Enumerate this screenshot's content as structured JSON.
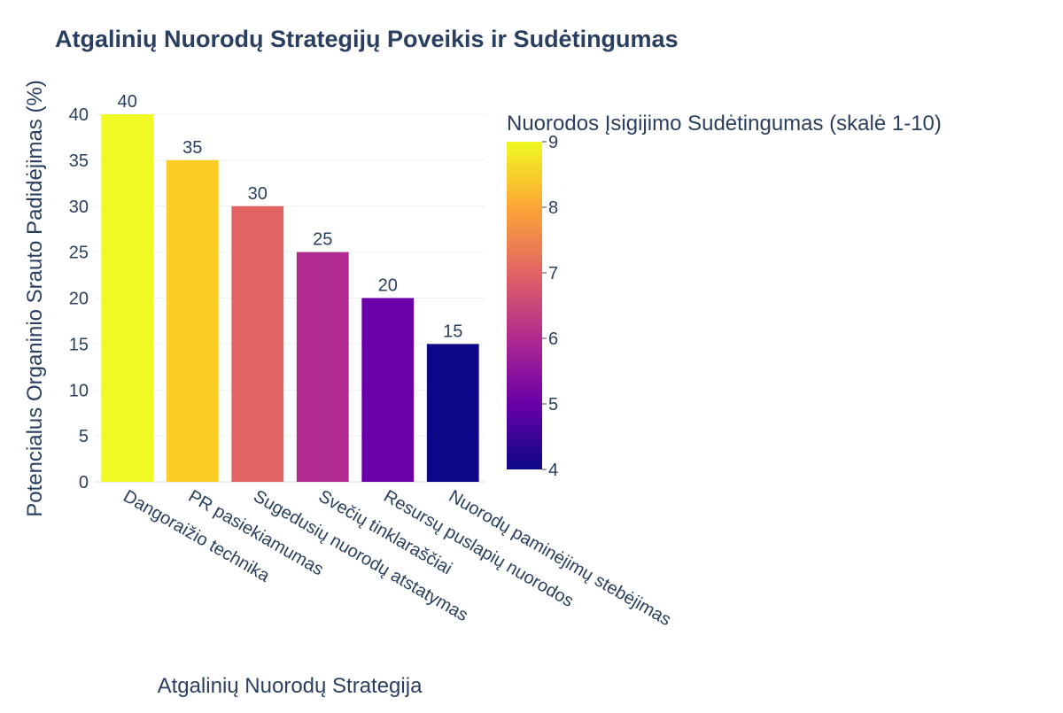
{
  "chart_data": {
    "type": "bar",
    "title": "Atgalinių Nuorodų Strategijų Poveikis ir Sudėtingumas",
    "xlabel": "Atgalinių Nuorodų Strategija",
    "ylabel": "Potencialus Organinio Srauto Padidėjimas (%)",
    "ylim": [
      0,
      40
    ],
    "yticks": [
      "0",
      "5",
      "10",
      "15",
      "20",
      "25",
      "30",
      "35",
      "40"
    ],
    "grid": true,
    "categories": [
      "Dangoraižio technika",
      "PR pasiekiamumas",
      "Sugedusių nuorodų atstatymas",
      "Svečių tinklaraščiai",
      "Resursų puslapių nuorodos",
      "Nuorodų paminėjimų stebėjimas"
    ],
    "values": [
      40,
      35,
      30,
      25,
      20,
      15
    ],
    "data_labels": [
      "40",
      "35",
      "30",
      "25",
      "20",
      "15"
    ],
    "color_values": [
      9,
      8,
      7,
      6,
      5,
      4
    ],
    "colorbar": {
      "title": "Nuorodos Įsigijimo Sudėtingumas (skalė 1-10)",
      "range": [
        4,
        9
      ],
      "ticks": [
        "4",
        "5",
        "6",
        "7",
        "8",
        "9"
      ],
      "colorscale": "plasma",
      "colors": [
        "#0d0887",
        "#6a00a8",
        "#b12a90",
        "#e16462",
        "#fca636",
        "#f0f921"
      ]
    },
    "bar_colors": [
      "#f0f921",
      "#fccd25",
      "#e16462",
      "#b12a90",
      "#6a00a8",
      "#0d0887"
    ]
  }
}
